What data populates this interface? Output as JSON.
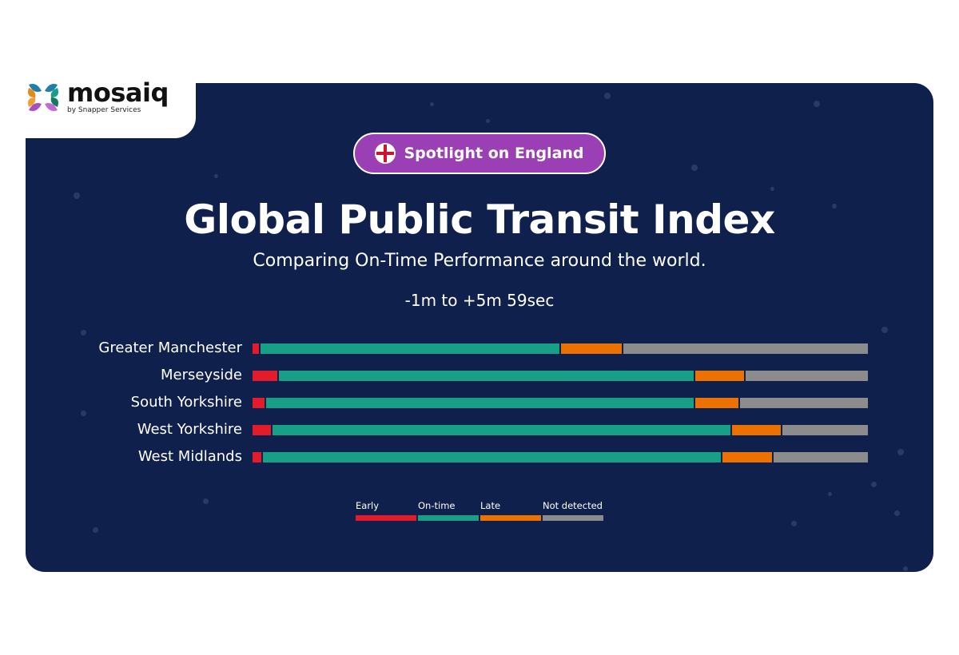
{
  "logo": {
    "name": "mosaiq",
    "tagline": "by Snapper Services"
  },
  "badge": {
    "label": "Spotlight on England",
    "icon": "england-flag-icon"
  },
  "chart_data": {
    "type": "bar",
    "orientation": "horizontal-stacked-100",
    "title": "Global Public Transit Index",
    "subtitle": "Comparing On-Time Performance around the world.",
    "range_label": "-1m to +5m 59sec",
    "categories": [
      "Greater Manchester",
      "Merseyside",
      "South Yorkshire",
      "West Yorkshire",
      "West Midlands"
    ],
    "series": [
      {
        "name": "Early",
        "color": "#e31b2b",
        "values": [
          1,
          4,
          2,
          3,
          1.5
        ]
      },
      {
        "name": "On-time",
        "color": "#17a085",
        "values": [
          49,
          68,
          70,
          75,
          75
        ]
      },
      {
        "name": "Late",
        "color": "#ec7100",
        "values": [
          10,
          8,
          7,
          8,
          8
        ]
      },
      {
        "name": "Not detected",
        "color": "#8c8c8c",
        "values": [
          40,
          20,
          21,
          14,
          15.5
        ]
      }
    ],
    "units": "percent (estimated)",
    "legend_position": "bottom-center",
    "grid": false
  }
}
